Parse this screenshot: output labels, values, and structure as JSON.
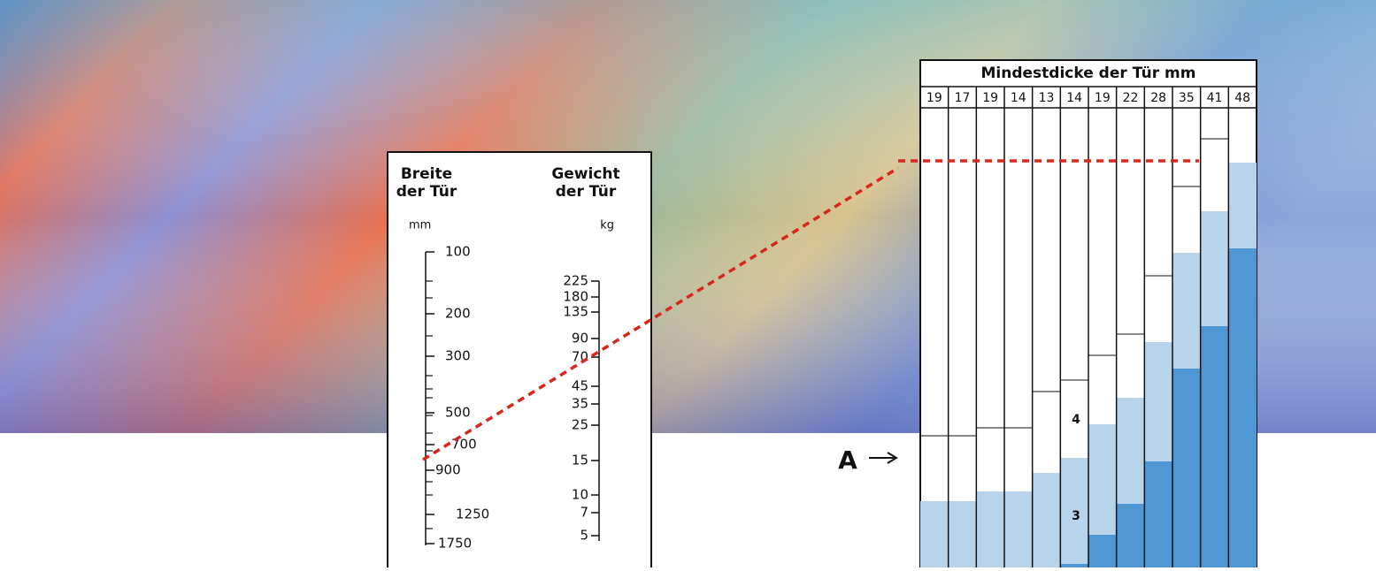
{
  "nomogram": {
    "width_label": "Breite der Tür",
    "width_unit": "mm",
    "weight_label": "Gewicht der Tür",
    "weight_unit": "kg",
    "width_scale": [
      100,
      200,
      300,
      500,
      700,
      900,
      1250,
      1750
    ],
    "weight_scale": [
      225,
      180,
      135,
      90,
      70,
      45,
      35,
      25,
      15,
      10,
      7,
      5
    ]
  },
  "table": {
    "title": "Mindestdicke der Tür mm",
    "columns": [
      19,
      17,
      19,
      14,
      13,
      14,
      19,
      22,
      28,
      35,
      41,
      48
    ],
    "zone_labels": [
      "4",
      "3"
    ],
    "marker": "A"
  }
}
